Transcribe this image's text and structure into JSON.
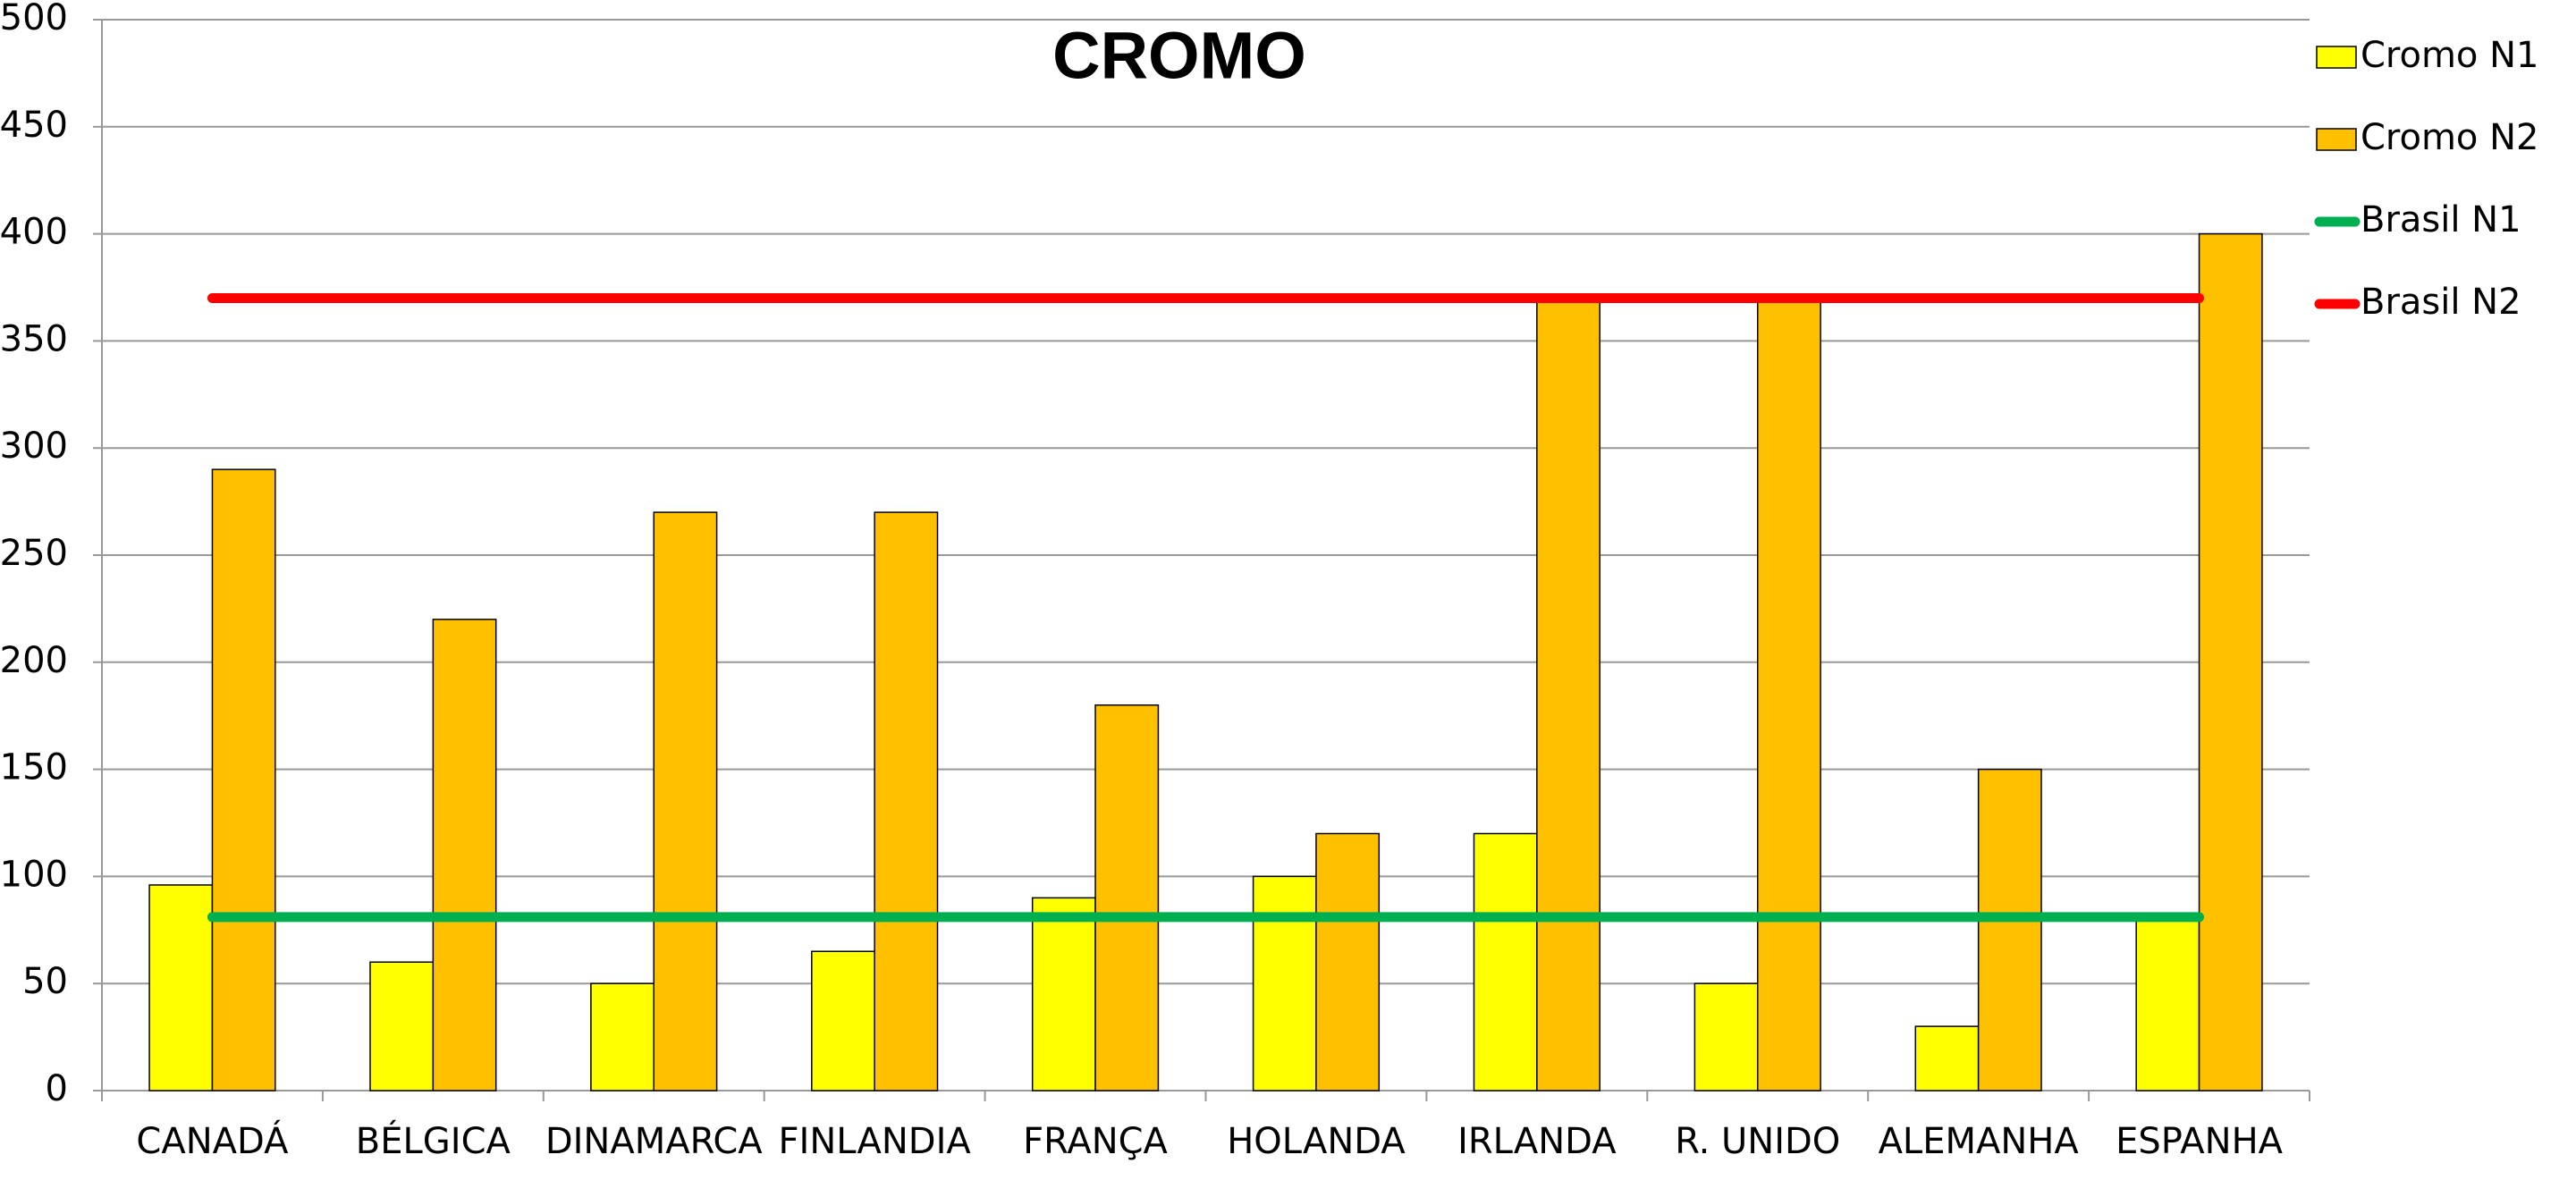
{
  "chart_data": {
    "type": "bar",
    "title": "CROMO",
    "categories": [
      "CANADÁ",
      "BÉLGICA",
      "DINAMARCA",
      "FINLANDIA",
      "FRANÇA",
      "HOLANDA",
      "IRLANDA",
      "R. UNIDO",
      "ALEMANHA",
      "ESPANHA"
    ],
    "series": [
      {
        "name": "Cromo N1",
        "type": "bar",
        "color": "#ffff00",
        "values": [
          96,
          60,
          50,
          65,
          90,
          100,
          120,
          50,
          30,
          80
        ]
      },
      {
        "name": "Cromo N2",
        "type": "bar",
        "color": "#ffc000",
        "values": [
          290,
          220,
          270,
          270,
          180,
          120,
          370,
          370,
          150,
          400
        ]
      },
      {
        "name": "Brasil N1",
        "type": "line",
        "color": "#00b050",
        "values": [
          81,
          81,
          81,
          81,
          81,
          81,
          81,
          81,
          81,
          81
        ]
      },
      {
        "name": "Brasil N2",
        "type": "line",
        "color": "#ff0000",
        "values": [
          370,
          370,
          370,
          370,
          370,
          370,
          370,
          370,
          370,
          370
        ]
      }
    ],
    "ylim": [
      0,
      500
    ],
    "yticks": [
      0,
      50,
      100,
      150,
      200,
      250,
      300,
      350,
      400,
      450,
      500
    ],
    "grid": true,
    "legend": "right"
  }
}
